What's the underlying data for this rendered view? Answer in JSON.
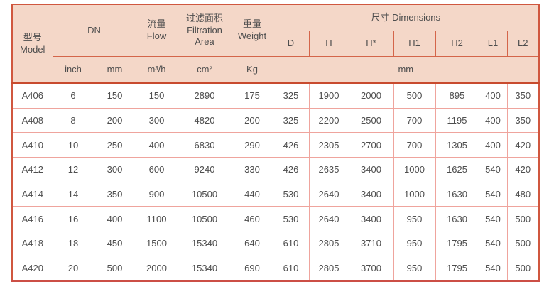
{
  "colors": {
    "header_bg": "#f4d7c8",
    "header_border": "#d4654a",
    "outer_border": "#d0573f",
    "header_bottom_divider": "#c84b2e",
    "body_cell_border": "#efa49d",
    "text": "#4e4e4e",
    "page_bg": "#ffffff"
  },
  "table": {
    "header": {
      "model": {
        "zh": "型号",
        "en": "Model"
      },
      "dn": "DN",
      "flow": {
        "zh": "流量",
        "en": "Flow"
      },
      "filtration": {
        "zh": "过滤面积",
        "en1": "Filtration",
        "en2": "Area"
      },
      "weight": {
        "zh": "重量",
        "en": "Weight"
      },
      "dimensions": "尺寸 Dimensions",
      "dim_cols": [
        "D",
        "H",
        "H*",
        "H1",
        "H2",
        "L1",
        "L2"
      ],
      "units": {
        "inch": "inch",
        "mm": "mm",
        "flow": "m³/h",
        "area": "cm²",
        "weight": "Kg",
        "dims": "mm"
      }
    },
    "rows": [
      {
        "model": "A406",
        "values": [
          "6",
          "150",
          "150",
          "2890",
          "175",
          "325",
          "1900",
          "2000",
          "500",
          "895",
          "400",
          "350"
        ]
      },
      {
        "model": "A408",
        "values": [
          "8",
          "200",
          "300",
          "4820",
          "200",
          "325",
          "2200",
          "2500",
          "700",
          "1195",
          "400",
          "350"
        ]
      },
      {
        "model": "A410",
        "values": [
          "10",
          "250",
          "400",
          "6830",
          "290",
          "426",
          "2305",
          "2700",
          "700",
          "1305",
          "400",
          "420"
        ]
      },
      {
        "model": "A412",
        "values": [
          "12",
          "300",
          "600",
          "9240",
          "330",
          "426",
          "2635",
          "3400",
          "1000",
          "1625",
          "540",
          "420"
        ]
      },
      {
        "model": "A414",
        "values": [
          "14",
          "350",
          "900",
          "10500",
          "440",
          "530",
          "2640",
          "3400",
          "1000",
          "1630",
          "540",
          "480"
        ]
      },
      {
        "model": "A416",
        "values": [
          "16",
          "400",
          "1100",
          "10500",
          "460",
          "530",
          "2640",
          "3400",
          "950",
          "1630",
          "540",
          "500"
        ]
      },
      {
        "model": "A418",
        "values": [
          "18",
          "450",
          "1500",
          "15340",
          "640",
          "610",
          "2805",
          "3710",
          "950",
          "1795",
          "540",
          "500"
        ]
      },
      {
        "model": "A420",
        "values": [
          "20",
          "500",
          "2000",
          "15340",
          "690",
          "610",
          "2805",
          "3700",
          "950",
          "1795",
          "540",
          "500"
        ]
      }
    ]
  }
}
